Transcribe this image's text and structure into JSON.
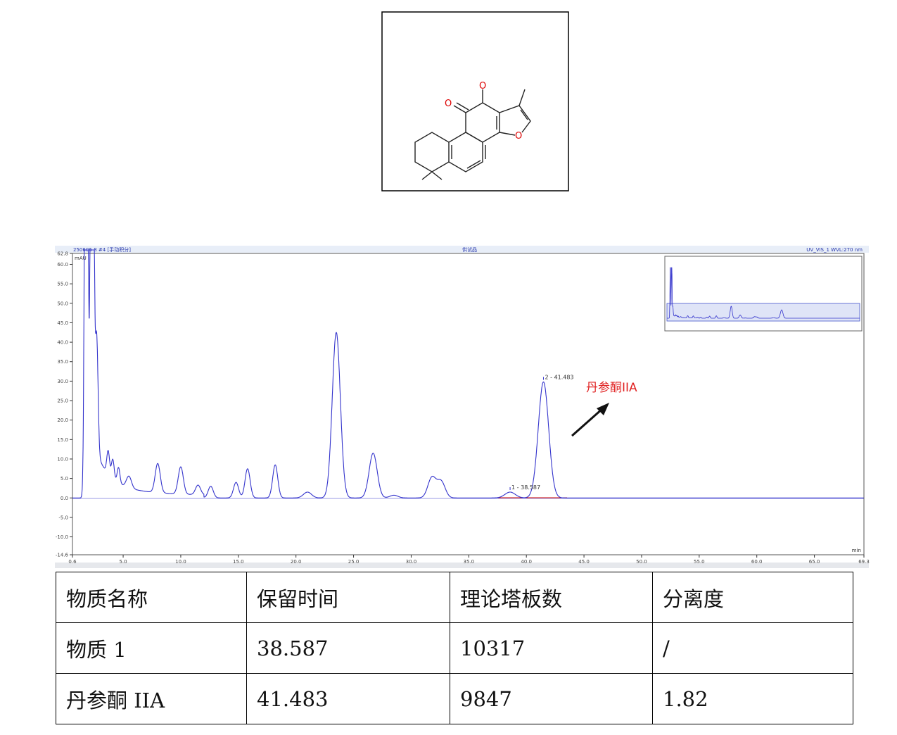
{
  "structure": {
    "atom_labels": [
      "O",
      "O",
      "O"
    ]
  },
  "chromatogram": {
    "header_left": "250606-8 #4 [手动积分]",
    "header_center": "供试品",
    "header_right": "UV_VIS_1 WVL:270 nm",
    "y_unit": "mAU",
    "x_unit": "min",
    "annotation": "丹参酮IIA",
    "annotation_color": "#e02020",
    "trace_color": "#3333cc"
  },
  "chart_data": {
    "type": "line",
    "xlabel": "min",
    "ylabel": "mAU",
    "xlim": [
      0.6,
      69.3
    ],
    "ylim": [
      -14.6,
      62.8
    ],
    "x_ticks": [
      "0.6",
      "5.0",
      "10.0",
      "15.0",
      "20.0",
      "25.0",
      "30.0",
      "35.0",
      "40.0",
      "45.0",
      "50.0",
      "55.0",
      "60.0",
      "65.0",
      "69.3"
    ],
    "y_ticks": [
      "62.8",
      "60.0",
      "55.0",
      "50.0",
      "45.0",
      "40.0",
      "35.0",
      "30.0",
      "25.0",
      "20.0",
      "15.0",
      "10.0",
      "5.0",
      "0.0",
      "-5.0",
      "-10.0",
      "-14.6"
    ],
    "peaks": [
      {
        "t": 1.8,
        "h": 200
      },
      {
        "t": 2.3,
        "h": 200
      },
      {
        "t": 2.7,
        "h": 30
      },
      {
        "t": 3.7,
        "h": 6
      },
      {
        "t": 4.1,
        "h": 5
      },
      {
        "t": 4.6,
        "h": 4
      },
      {
        "t": 5.5,
        "h": 3
      },
      {
        "t": 8.0,
        "h": 7.5
      },
      {
        "t": 10.0,
        "h": 7
      },
      {
        "t": 11.5,
        "h": 2.5
      },
      {
        "t": 12.6,
        "h": 3
      },
      {
        "t": 14.8,
        "h": 4
      },
      {
        "t": 15.8,
        "h": 7.5
      },
      {
        "t": 18.2,
        "h": 8.5
      },
      {
        "t": 21.0,
        "h": 1.5
      },
      {
        "t": 23.5,
        "h": 42.5
      },
      {
        "t": 26.7,
        "h": 11.5
      },
      {
        "t": 28.5,
        "h": 0.7
      },
      {
        "t": 31.8,
        "h": 5.2
      },
      {
        "t": 32.6,
        "h": 4.2
      },
      {
        "t": 38.587,
        "h": 1.5,
        "label": "1 - 38.587"
      },
      {
        "t": 41.483,
        "h": 29.8,
        "label": "2 - 41.483"
      }
    ]
  },
  "table": {
    "headers": [
      "物质名称",
      "保留时间",
      "理论塔板数",
      "分离度"
    ],
    "rows": [
      [
        "物质 1",
        "38.587",
        "10317",
        "/"
      ],
      [
        "丹参酮 IIA",
        "41.483",
        "9847",
        "1.82"
      ]
    ]
  }
}
